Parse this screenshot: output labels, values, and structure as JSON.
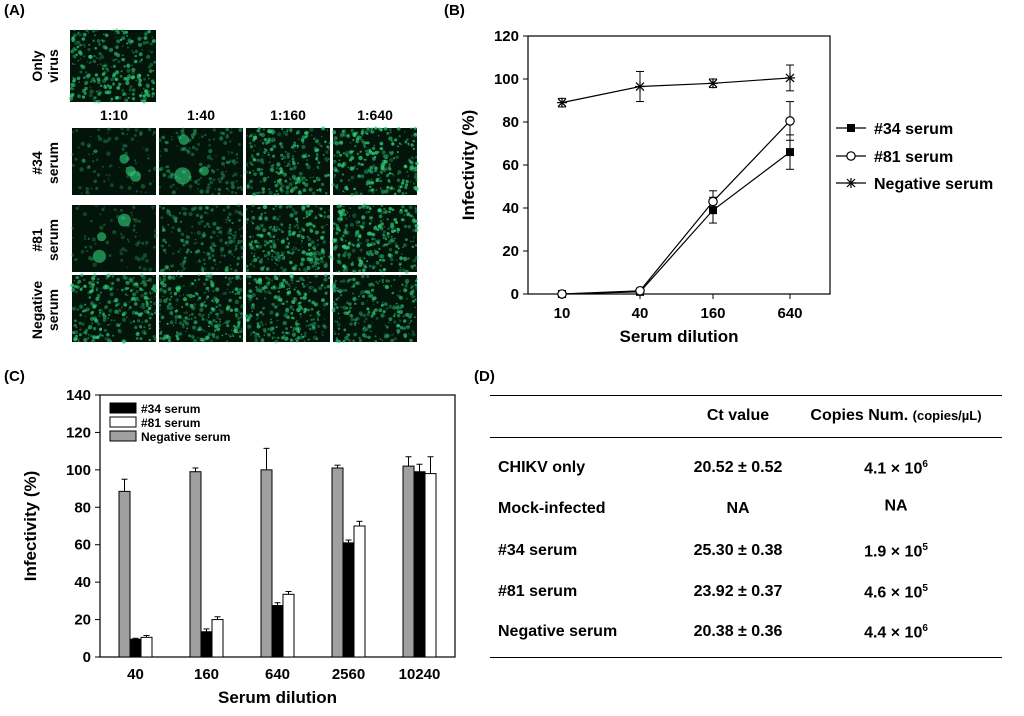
{
  "panel_labels": {
    "a": "(A)",
    "b": "(B)",
    "c": "(C)",
    "d": "(D)"
  },
  "panel_a": {
    "only_virus_label": [
      "Only",
      "virus"
    ],
    "dilutions": [
      "1:10",
      "1:40",
      "1:160",
      "1:640"
    ],
    "rows": [
      {
        "label": [
          "#34",
          "serum"
        ],
        "intensity": [
          0.15,
          0.35,
          0.8,
          0.9
        ]
      },
      {
        "label": [
          "#81",
          "serum"
        ],
        "intensity": [
          0.1,
          0.5,
          0.85,
          0.9
        ]
      },
      {
        "label": [
          "Negative",
          "serum"
        ],
        "intensity": [
          0.85,
          0.8,
          0.85,
          0.7
        ]
      }
    ]
  },
  "chart_data": [
    {
      "panel": "B",
      "type": "line",
      "x": [
        10,
        40,
        160,
        640
      ],
      "xscale": "log",
      "xlabel": "Serum dilution",
      "ylabel": "Infectivity (%)",
      "ylim": [
        0,
        120
      ],
      "yticks": [
        0,
        20,
        40,
        60,
        80,
        100,
        120
      ],
      "legend_position": "right",
      "series": [
        {
          "name": "#34 serum",
          "marker": "filled-square",
          "values": [
            0,
            1,
            39,
            66
          ],
          "errors": [
            1,
            1,
            6,
            8
          ]
        },
        {
          "name": "#81 serum",
          "marker": "open-circle",
          "values": [
            0,
            1.5,
            43,
            80.5
          ],
          "errors": [
            1,
            1,
            5,
            9
          ]
        },
        {
          "name": "Negative serum",
          "marker": "asterisk",
          "values": [
            89,
            96.5,
            98,
            100.5
          ],
          "errors": [
            2,
            7,
            2,
            6
          ]
        }
      ]
    },
    {
      "panel": "C",
      "type": "bar",
      "categories": [
        "40",
        "160",
        "640",
        "2560",
        "10240"
      ],
      "xlabel": "Serum dilution",
      "ylabel": "Infectivity (%)",
      "ylim": [
        0,
        140
      ],
      "yticks": [
        0,
        20,
        40,
        60,
        80,
        100,
        120,
        140
      ],
      "legend_position": "top-left",
      "series": [
        {
          "name": "#34 serum",
          "color": "#000000",
          "values": [
            9.5,
            13.5,
            27.5,
            61,
            99
          ],
          "errors": [
            0.5,
            1.5,
            1.5,
            1.5,
            4
          ]
        },
        {
          "name": "#81 serum",
          "color": "#ffffff",
          "values": [
            10.5,
            20,
            33.5,
            70,
            98
          ],
          "errors": [
            1,
            1.5,
            1.5,
            2.5,
            9
          ]
        },
        {
          "name": "Negative serum",
          "color": "#a0a0a0",
          "values": [
            88.5,
            99,
            100,
            101,
            102
          ],
          "errors": [
            6.5,
            2,
            11.5,
            1.5,
            5
          ]
        }
      ]
    }
  ],
  "table": {
    "headers": [
      "",
      "Ct value",
      "Copies Num."
    ],
    "header_unit": "(copies/µL)",
    "rows": [
      {
        "label": "CHIKV only",
        "ct": "20.52 ± 0.52",
        "copies_base": "4.1 × 10",
        "copies_exp": "6"
      },
      {
        "label": "Mock-infected",
        "ct": "NA",
        "copies_base": "NA",
        "copies_exp": ""
      },
      {
        "label": "#34 serum",
        "ct": "25.30 ± 0.38",
        "copies_base": "1.9 × 10",
        "copies_exp": "5"
      },
      {
        "label": "#81 serum",
        "ct": "23.92 ± 0.37",
        "copies_base": "4.6 × 10",
        "copies_exp": "5"
      },
      {
        "label": "Negative serum",
        "ct": "20.38 ± 0.36",
        "copies_base": "4.4 × 10",
        "copies_exp": "6"
      }
    ]
  },
  "colors": {
    "micrograph_green": "#2fd17a",
    "micrograph_dark": "#03140b",
    "bar_gray": "#a0a0a0"
  }
}
